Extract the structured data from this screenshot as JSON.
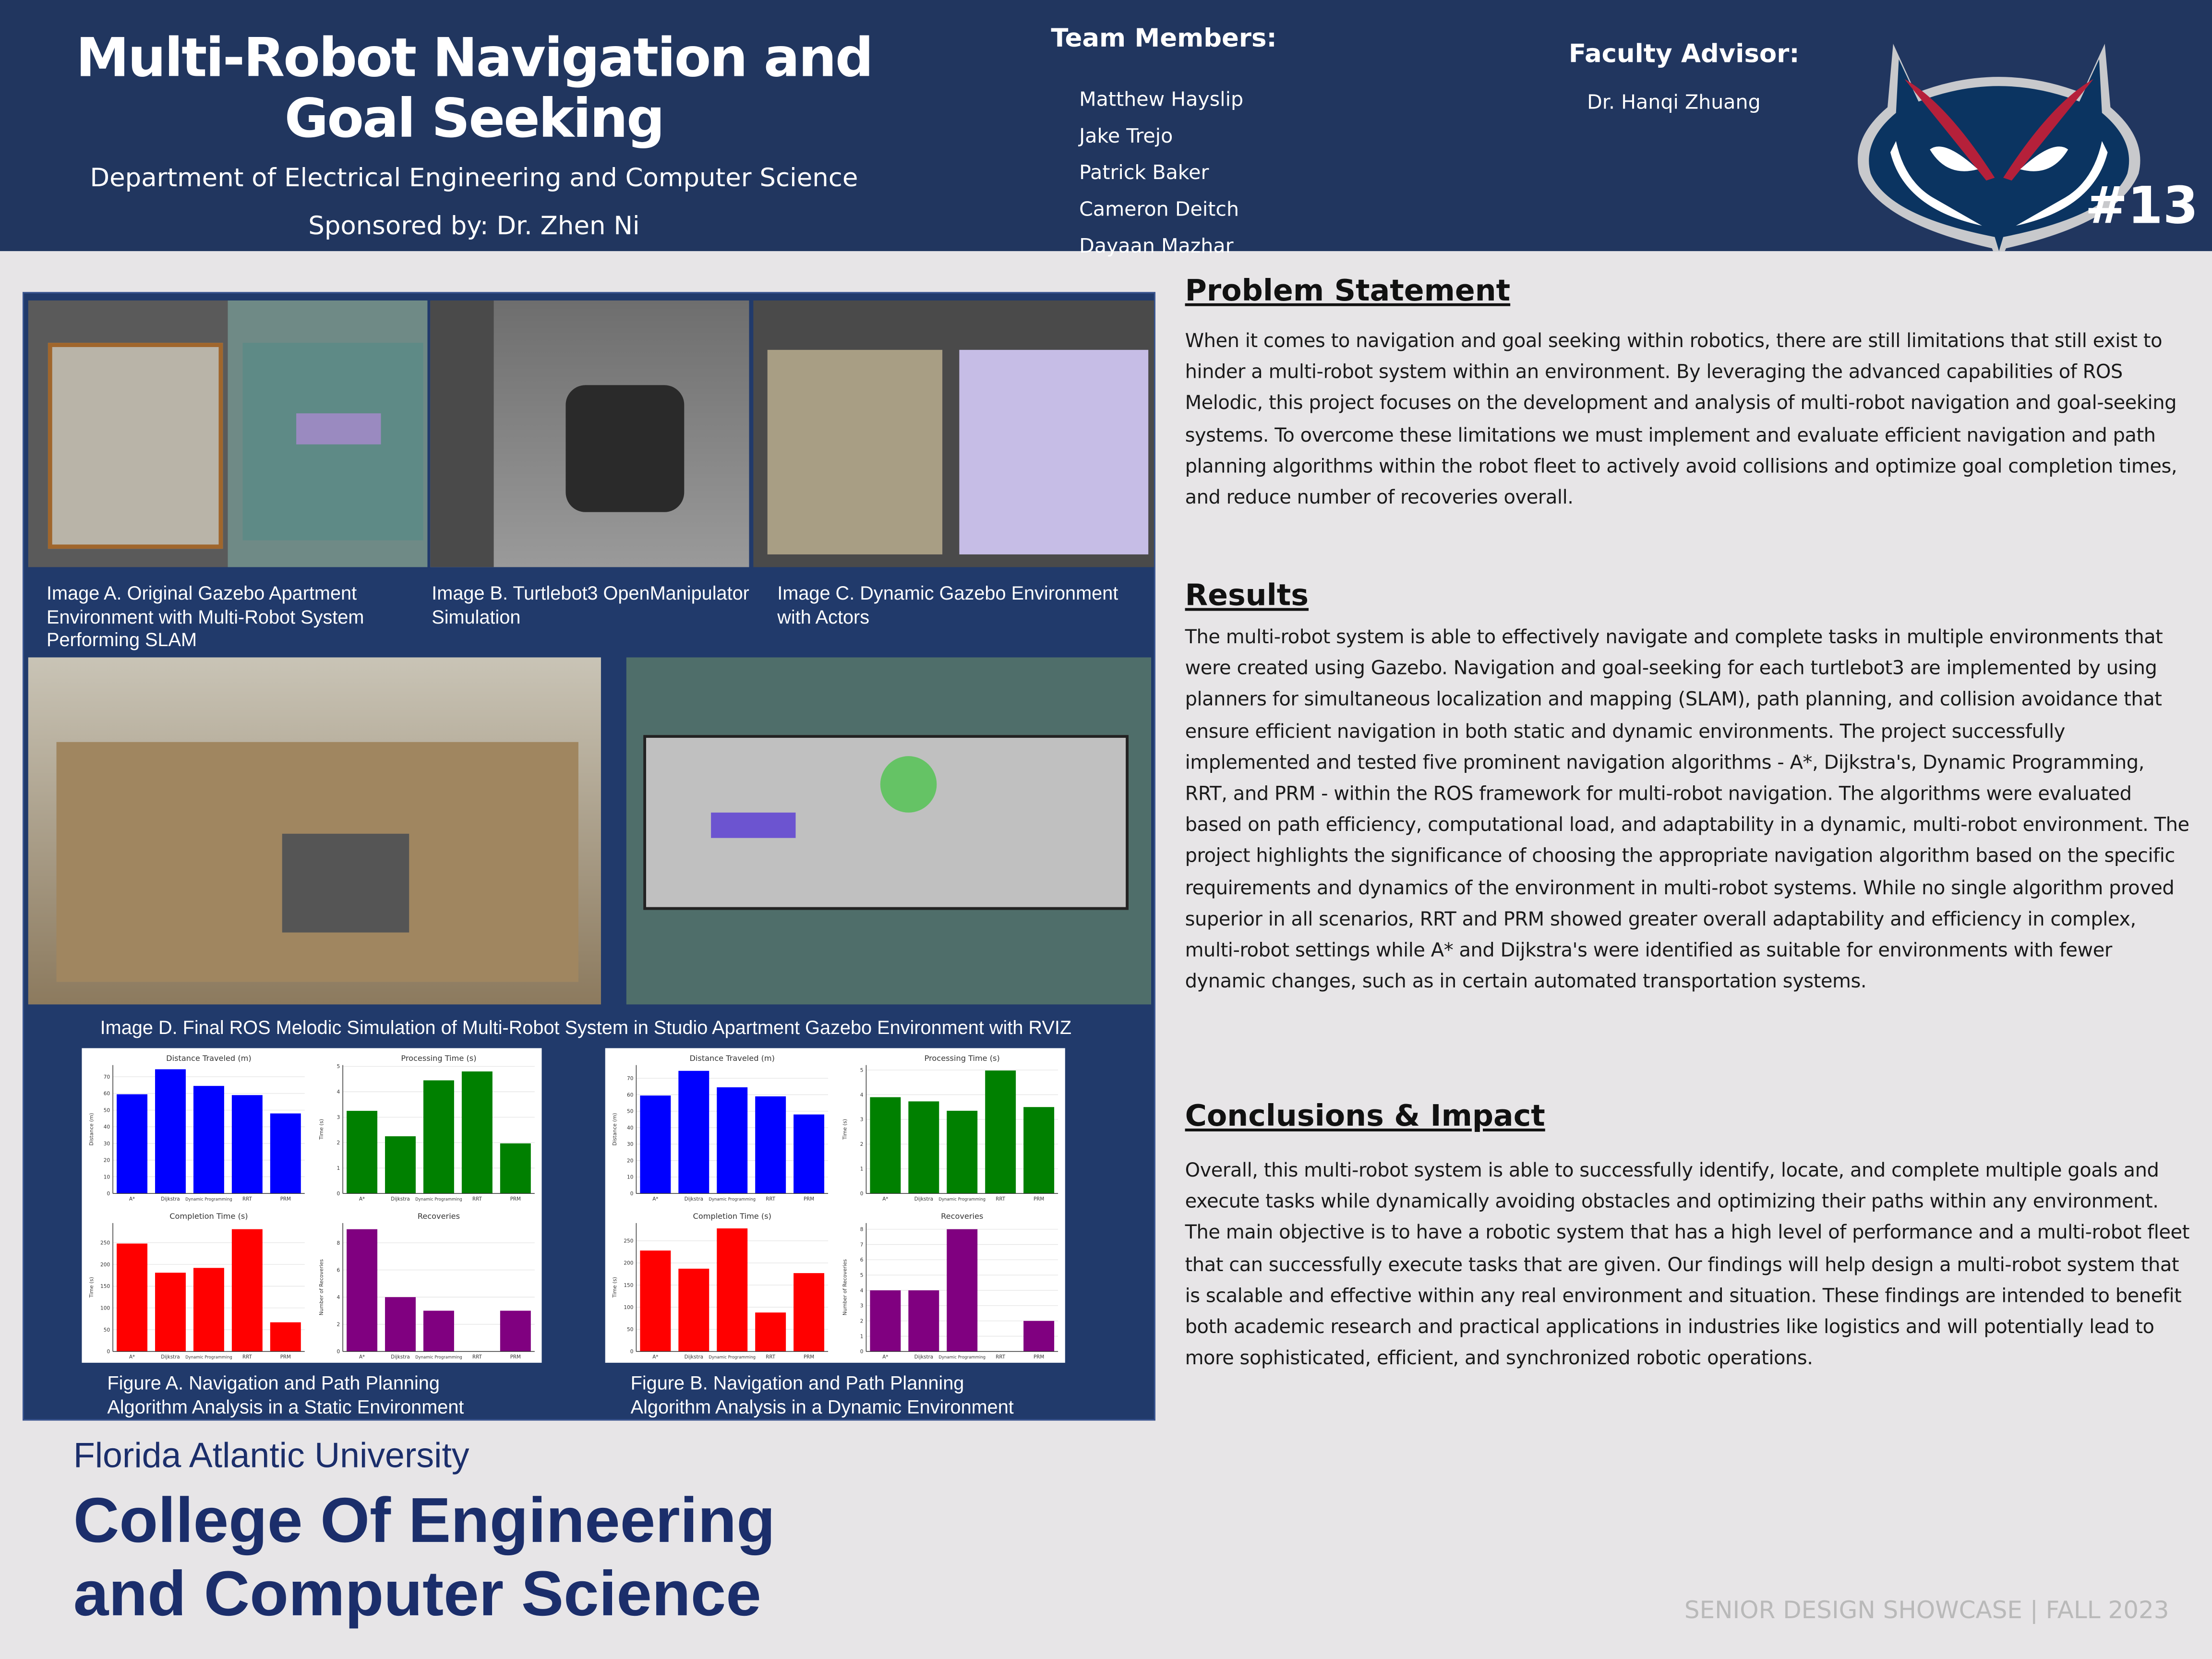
{
  "header": {
    "title": "Multi-Robot Navigation and Goal Seeking",
    "department": "Department of Electrical Engineering and Computer Science",
    "sponsor": "Sponsored by: Dr. Zhen Ni",
    "team_heading": "Team Members:",
    "team": [
      "Matthew Hayslip",
      "Jake Trejo",
      "Patrick Baker",
      "Cameron Deitch",
      "Dayaan Mazhar"
    ],
    "advisor_heading": "Faculty Advisor:",
    "advisor": "Dr.  Hanqi Zhuang",
    "team_number": "#13",
    "logo": "fau-owl-logo"
  },
  "images": {
    "a_caption": "Image A. Original Gazebo Apartment Environment with Multi-Robot System Performing SLAM",
    "b_caption": "Image B. Turtlebot3 OpenManipulator Simulation",
    "c_caption": "Image C. Dynamic Gazebo Environment with Actors",
    "d_caption": "Image D. Final ROS Melodic Simulation of Multi-Robot System in Studio Apartment Gazebo Environment with RVIZ"
  },
  "figures": {
    "a_caption": "Figure A. Navigation and Path Planning Algorithm Analysis  in a Static Environment",
    "b_caption": "Figure B. Navigation and Path Planning Algorithm Analysis  in a Dynamic Environment"
  },
  "chart_data": [
    {
      "figure": "A",
      "type": "bar",
      "title": "Distance Traveled (m)",
      "ylabel": "Distance (m)",
      "categories": [
        "A*",
        "Dijkstra",
        "Dynamic Programming",
        "RRT",
        "PRM"
      ],
      "values": [
        59.5,
        74.5,
        64.5,
        59,
        48
      ],
      "ylim": [
        0,
        77
      ],
      "yticks": [
        0,
        10,
        20,
        30,
        40,
        50,
        60,
        70
      ],
      "color": "#0000ff",
      "grid": true
    },
    {
      "figure": "A",
      "type": "bar",
      "title": "Processing Time (s)",
      "ylabel": "Time (s)",
      "categories": [
        "A*",
        "Dijkstra",
        "Dynamic Programming",
        "RRT",
        "PRM"
      ],
      "values": [
        3.25,
        2.25,
        4.45,
        4.8,
        1.97
      ],
      "ylim": [
        0,
        5.05
      ],
      "yticks": [
        0,
        1,
        2,
        3,
        4,
        5
      ],
      "color": "#008000",
      "grid": true
    },
    {
      "figure": "A",
      "type": "bar",
      "title": "Completion Time (s)",
      "ylabel": "Time (s)",
      "categories": [
        "A*",
        "Dijkstra",
        "Dynamic Programming",
        "RRT",
        "PRM"
      ],
      "values": [
        248,
        181,
        192,
        281,
        67
      ],
      "ylim": [
        0,
        295
      ],
      "yticks": [
        0,
        50,
        100,
        150,
        200,
        250
      ],
      "color": "#ff0000",
      "grid": true
    },
    {
      "figure": "A",
      "type": "bar",
      "title": "Recoveries",
      "ylabel": "Number of Recoveries",
      "categories": [
        "A*",
        "Dijkstra",
        "Dynamic Programming",
        "RRT",
        "PRM"
      ],
      "values": [
        9,
        4,
        3,
        0,
        3
      ],
      "ylim": [
        0,
        9.45
      ],
      "yticks": [
        0,
        2,
        4,
        6,
        8
      ],
      "color": "#800080",
      "grid": true
    },
    {
      "figure": "B",
      "type": "bar",
      "title": "Distance Traveled (m)",
      "ylabel": "Distance (m)",
      "categories": [
        "A*",
        "Dijkstra",
        "Dynamic Programming",
        "RRT",
        "PRM"
      ],
      "values": [
        59.5,
        74.5,
        64.5,
        59,
        48
      ],
      "ylim": [
        0,
        78
      ],
      "yticks": [
        0,
        10,
        20,
        30,
        40,
        50,
        60,
        70
      ],
      "color": "#0000ff",
      "grid": true
    },
    {
      "figure": "B",
      "type": "bar",
      "title": "Processing Time (s)",
      "ylabel": "Time (s)",
      "categories": [
        "A*",
        "Dijkstra",
        "Dynamic Programming",
        "RRT",
        "PRM"
      ],
      "values": [
        3.9,
        3.73,
        3.35,
        4.98,
        3.5
      ],
      "ylim": [
        0,
        5.2
      ],
      "yticks": [
        0,
        1,
        2,
        3,
        4,
        5
      ],
      "color": "#008000",
      "grid": true
    },
    {
      "figure": "B",
      "type": "bar",
      "title": "Completion Time (s)",
      "ylabel": "Time (s)",
      "categories": [
        "A*",
        "Dijkstra",
        "Dynamic Programming",
        "RRT",
        "PRM"
      ],
      "values": [
        228,
        187,
        278,
        88,
        177
      ],
      "ylim": [
        0,
        290
      ],
      "yticks": [
        0,
        50,
        100,
        150,
        200,
        250
      ],
      "color": "#ff0000",
      "grid": true
    },
    {
      "figure": "B",
      "type": "bar",
      "title": "Recoveries",
      "ylabel": "Number of Recoveries",
      "categories": [
        "A*",
        "Dijkstra",
        "Dynamic Programming",
        "RRT",
        "PRM"
      ],
      "values": [
        4,
        4,
        8,
        0,
        2
      ],
      "ylim": [
        0,
        8.4
      ],
      "yticks": [
        0,
        1,
        2,
        3,
        4,
        5,
        6,
        7,
        8
      ],
      "color": "#800080",
      "grid": true
    }
  ],
  "sections": {
    "problem_heading": "Problem Statement",
    "problem_text": "When it comes to navigation and goal seeking within robotics, there are still limitations that still exist to hinder a multi-robot system within an environment. By leveraging the advanced capabilities of ROS Melodic, this project focuses on the development and analysis of multi-robot navigation and goal-seeking systems. To overcome these limitations we must implement and evaluate efficient navigation and path planning algorithms within the robot fleet to actively  avoid collisions and optimize goal completion times, and reduce number of recoveries overall.",
    "results_heading": "Results",
    "results_text": "The multi-robot system is able to effectively navigate and complete tasks in multiple environments that were created using Gazebo. Navigation and goal-seeking for each turtlebot3 are implemented by using planners for simultaneous localization and mapping (SLAM), path planning, and collision avoidance that ensure efficient navigation in both static and dynamic environments. The project successfully implemented and tested five prominent navigation algorithms - A*, Dijkstra's, Dynamic Programming, RRT, and PRM - within the ROS framework for multi-robot navigation. The algorithms were evaluated based on path efficiency, computational load, and adaptability in a dynamic, multi-robot environment. The project highlights the significance of choosing the appropriate navigation algorithm based on the specific requirements and dynamics of the environment in multi-robot systems. While no single algorithm proved superior in all scenarios, RRT and PRM showed greater overall adaptability and efficiency in complex, multi-robot settings while A* and Dijkstra's were identified as suitable for environments with fewer dynamic changes, such as in certain automated transportation systems.",
    "conclusions_heading": "Conclusions & Impact",
    "conclusions_text": "Overall, this multi-robot system is able to successfully identify, locate, and complete multiple goals and execute tasks while dynamically avoiding obstacles and optimizing their paths within any environment. The main objective is to have a robotic system that has a high level of performance and a multi-robot fleet that can successfully execute tasks that are given. Our findings will help design a multi-robot system that is scalable and effective within any real environment and situation. These findings are intended to benefit both academic research and practical applications in industries like logistics and will potentially lead to more sophisticated, efficient, and synchronized robotic operations."
  },
  "footer": {
    "university": "Florida Atlantic University",
    "college_line1": "College Of Engineering",
    "college_line2": "and Computer Science",
    "showcase": "SENIOR DESIGN SHOWCASE | FALL 2023"
  },
  "colors": {
    "header_bg": "#21365f",
    "panel_bg": "#213a6b",
    "page_bg": "#e7e5e7",
    "footer_text": "#1b2e6b",
    "owl_red": "#b5203a"
  }
}
